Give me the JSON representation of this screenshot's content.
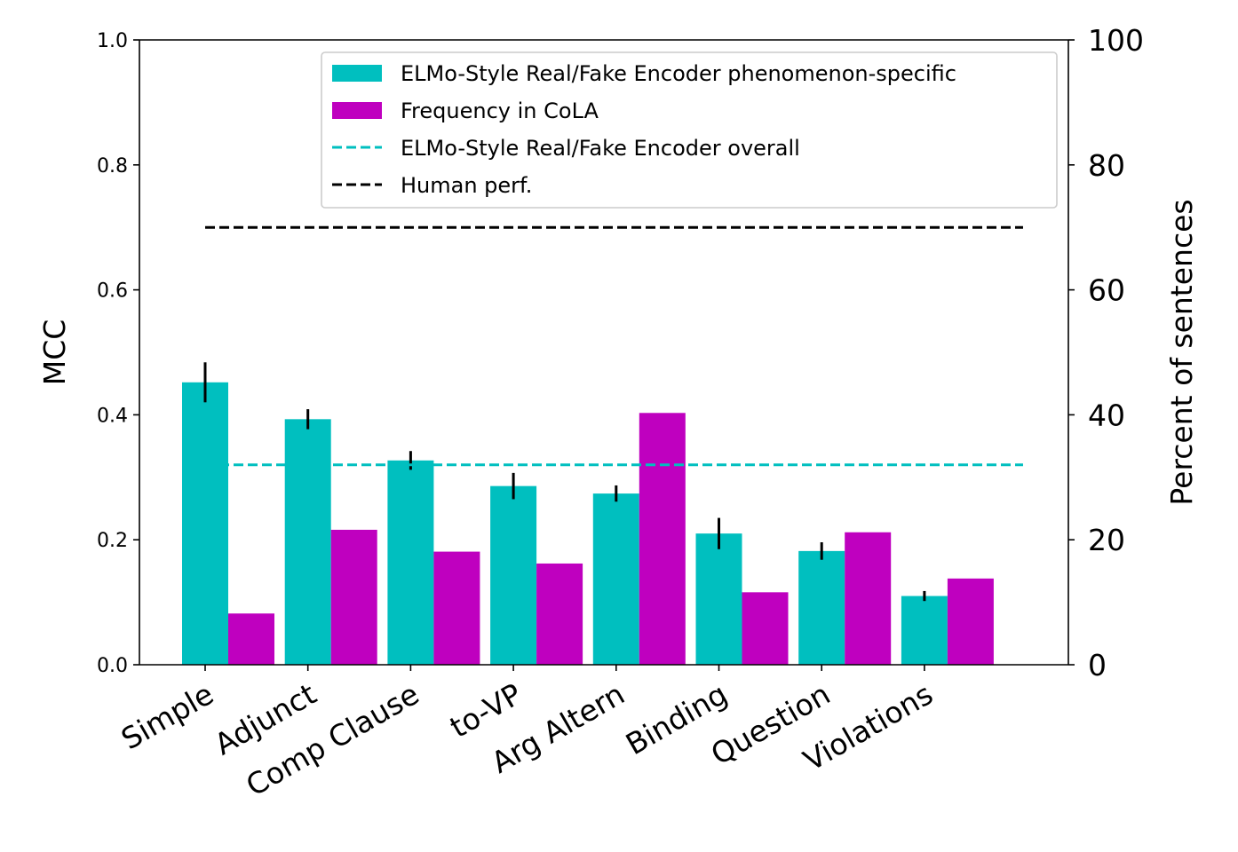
{
  "chart_data": {
    "type": "bar",
    "categories": [
      "Simple",
      "Adjunct",
      "Comp Clause",
      "to-VP",
      "Arg Altern",
      "Binding",
      "Question",
      "Violations"
    ],
    "series": [
      {
        "name": "ELMo-Style Real/Fake Encoder phenomenon-specific",
        "axis": "left",
        "color": "#00bfbf",
        "values": [
          0.452,
          0.393,
          0.327,
          0.286,
          0.274,
          0.21,
          0.182,
          0.11
        ],
        "error": [
          0.032,
          0.016,
          0.015,
          0.021,
          0.013,
          0.025,
          0.014,
          0.008
        ]
      },
      {
        "name": "Frequency in CoLA",
        "axis": "right",
        "color": "#bf00bf",
        "values": [
          8.2,
          21.6,
          18.1,
          16.2,
          40.3,
          11.6,
          21.2,
          13.8
        ]
      }
    ],
    "reference_lines": [
      {
        "name": "ELMo-Style Real/Fake Encoder overall",
        "value": 0.32,
        "color": "#00bfbf",
        "style": "dashed"
      },
      {
        "name": "Human perf.",
        "value": 0.7,
        "color": "#000000",
        "style": "dashed"
      }
    ],
    "ylabel": "MCC",
    "ylim": [
      0,
      1.0
    ],
    "yticks": [
      "0.0",
      "0.2",
      "0.4",
      "0.6",
      "0.8",
      "1.0"
    ],
    "y2label": "Percent of sentences",
    "y2lim": [
      0,
      100
    ],
    "y2ticks": [
      "0",
      "20",
      "40",
      "60",
      "80",
      "100"
    ],
    "legend_position": "top-right",
    "grid": false
  }
}
